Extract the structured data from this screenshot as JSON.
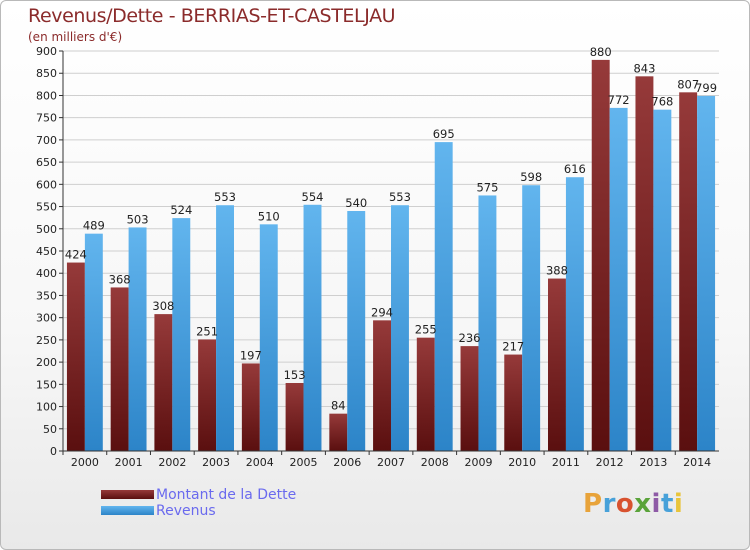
{
  "title": "Revenus/Dette - BERRIAS-ET-CASTELJAU",
  "subtitle": "(en milliers d'€)",
  "legend": {
    "debt_label": "Montant de la Dette",
    "revenue_label": "Revenus"
  },
  "logo": {
    "brand": "Proxiti"
  },
  "colors": {
    "debt_light": "#963a3a",
    "debt_dark": "#5a0f0f",
    "revenue_light": "#62b5ee",
    "revenue_dark": "#2c84c8",
    "grid": "#cfcfcf",
    "axis": "#333333"
  },
  "chart_data": {
    "type": "bar",
    "title": "Revenus/Dette - BERRIAS-ET-CASTELJAU",
    "subtitle": "(en milliers d'€)",
    "xlabel": "",
    "ylabel": "",
    "ylim": [
      0,
      900
    ],
    "yticks": [
      0,
      50,
      100,
      150,
      200,
      250,
      300,
      350,
      400,
      450,
      500,
      550,
      600,
      650,
      700,
      750,
      800,
      850,
      900
    ],
    "grid": true,
    "legend_position": "bottom-left",
    "categories": [
      "2000",
      "2001",
      "2002",
      "2003",
      "2004",
      "2005",
      "2006",
      "2007",
      "2008",
      "2009",
      "2010",
      "2011",
      "2012",
      "2013",
      "2014"
    ],
    "series": [
      {
        "name": "Montant de la Dette",
        "values": [
          424,
          368,
          308,
          251,
          197,
          153,
          84,
          294,
          255,
          236,
          217,
          388,
          880,
          843,
          807
        ]
      },
      {
        "name": "Revenus",
        "values": [
          489,
          503,
          524,
          553,
          510,
          554,
          540,
          553,
          695,
          575,
          598,
          616,
          772,
          768,
          799
        ]
      }
    ]
  }
}
